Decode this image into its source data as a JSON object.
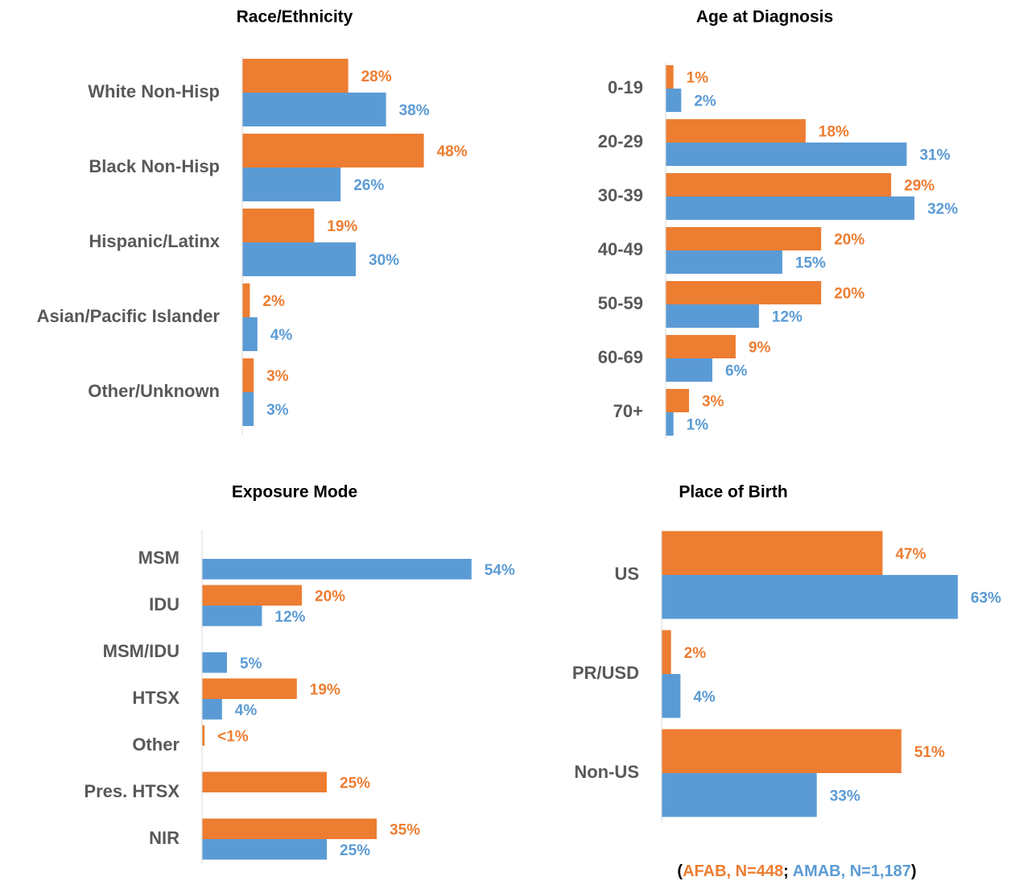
{
  "chart_data": [
    {
      "type": "bar",
      "orientation": "horizontal",
      "title": "Race/Ethnicity",
      "categories": [
        "White Non-Hisp",
        "Black Non-Hisp",
        "Hispanic/Latinx",
        "Asian/Pacific Islander",
        "Other/Unknown"
      ],
      "series": [
        {
          "name": "AFAB, N=448",
          "color": "#ED7D31",
          "values": [
            28,
            48,
            19,
            2,
            3
          ],
          "value_labels": [
            "28%",
            "48%",
            "19%",
            "2%",
            "3%"
          ]
        },
        {
          "name": "AMAB, N=1,187",
          "color": "#5B9BD5",
          "values": [
            38,
            26,
            30,
            4,
            3
          ],
          "value_labels": [
            "38%",
            "26%",
            "30%",
            "4%",
            "3%"
          ]
        }
      ]
    },
    {
      "type": "bar",
      "orientation": "horizontal",
      "title": "Age at Diagnosis",
      "categories": [
        "0-19",
        "20-29",
        "30-39",
        "40-49",
        "50-59",
        "60-69",
        "70+"
      ],
      "series": [
        {
          "color": "#ED7D31",
          "values": [
            1,
            18,
            29,
            20,
            20,
            9,
            3
          ],
          "value_labels": [
            "1%",
            "18%",
            "29%",
            "20%",
            "20%",
            "9%",
            "3%"
          ]
        },
        {
          "color": "#5B9BD5",
          "values": [
            2,
            31,
            32,
            15,
            12,
            6,
            1
          ],
          "value_labels": [
            "2%",
            "31%",
            "32%",
            "15%",
            "12%",
            "6%",
            "1%"
          ]
        }
      ]
    },
    {
      "type": "bar",
      "orientation": "horizontal",
      "title": "Exposure Mode",
      "categories": [
        "MSM",
        "IDU",
        "MSM/IDU",
        "HTSX",
        "Other",
        "Pres. HTSX",
        "NIR"
      ],
      "series": [
        {
          "color": "#ED7D31",
          "values": [
            null,
            20,
            null,
            19,
            0.5,
            25,
            35
          ],
          "value_labels": [
            null,
            "20%",
            null,
            "19%",
            "<1%",
            "25%",
            "35%"
          ]
        },
        {
          "color": "#5B9BD5",
          "values": [
            54,
            12,
            5,
            4,
            null,
            null,
            25
          ],
          "value_labels": [
            "54%",
            "12%",
            "5%",
            "4%",
            null,
            null,
            "25%"
          ]
        }
      ]
    },
    {
      "type": "bar",
      "orientation": "horizontal",
      "title": "Place of Birth",
      "categories": [
        "US",
        "PR/USD",
        "Non-US"
      ],
      "series": [
        {
          "color": "#ED7D31",
          "values": [
            47,
            2,
            51
          ],
          "value_labels": [
            "47%",
            "2%",
            "51%"
          ]
        },
        {
          "color": "#5B9BD5",
          "values": [
            63,
            4,
            33
          ],
          "value_labels": [
            "63%",
            "4%",
            "33%"
          ]
        }
      ]
    }
  ],
  "legend_punctuation": [
    "(",
    "; ",
    ")"
  ]
}
